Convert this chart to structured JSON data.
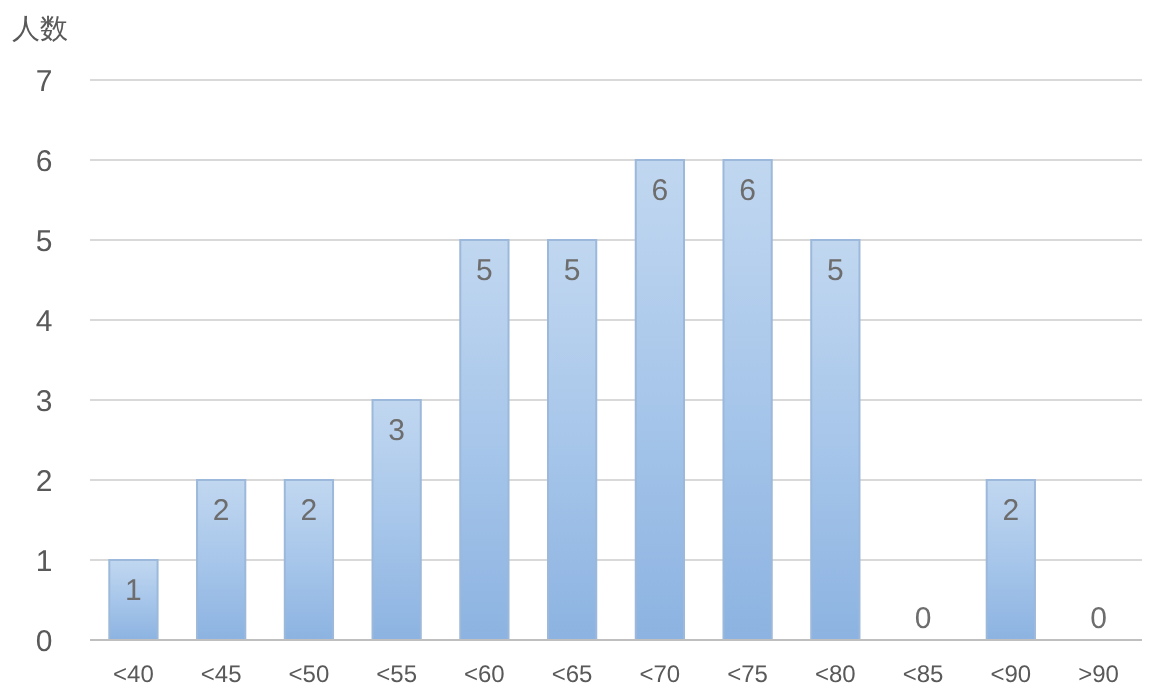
{
  "chart_data": {
    "type": "bar",
    "ylabel": "人数",
    "categories": [
      "<40",
      "<45",
      "<50",
      "<55",
      "<60",
      "<65",
      "<70",
      "<75",
      "<80",
      "<85",
      "<90",
      ">90"
    ],
    "values": [
      1,
      2,
      2,
      3,
      5,
      5,
      6,
      6,
      5,
      0,
      2,
      0
    ],
    "color": "#a7c6ea",
    "ylim": [
      0,
      7
    ],
    "yticks": [
      0,
      1,
      2,
      3,
      4,
      5,
      6,
      7
    ],
    "grid": "y",
    "data_labels": true
  }
}
